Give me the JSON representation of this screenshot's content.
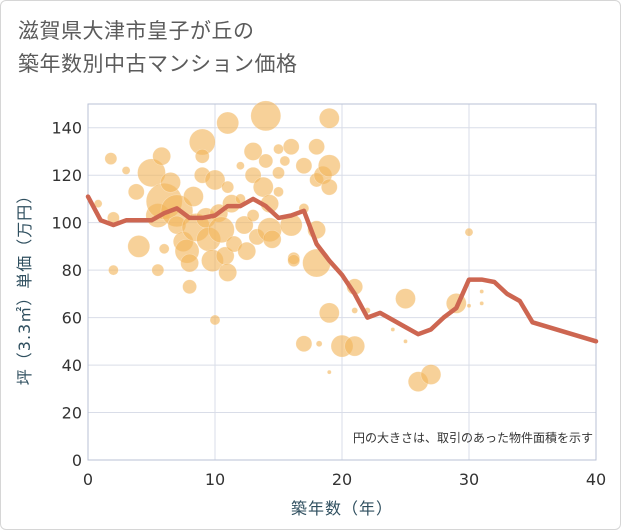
{
  "title": {
    "line1": "滋賀県大津市皇子が丘の",
    "line2": "築年数別中古マンション価格"
  },
  "colors": {
    "bubble": "#f2b45a",
    "line": "#cd6651",
    "grid": "#d9dde8",
    "plot_border": "#b9c1d6"
  },
  "chart_data": {
    "type": "scatter",
    "xlabel": "築年数（年）",
    "ylabel": "坪（3.3㎡）単価（万円）",
    "xlim": [
      0,
      40
    ],
    "ylim": [
      0,
      150
    ],
    "xticks": [
      0,
      10,
      20,
      30,
      40
    ],
    "yticks": [
      0,
      20,
      40,
      60,
      80,
      100,
      120,
      140
    ],
    "grid": true,
    "annotation": "円の大きさは、取引のあった物件面積を示す",
    "line": {
      "x": [
        0,
        1,
        2,
        3,
        4,
        5,
        6,
        7,
        8,
        9,
        10,
        11,
        12,
        13,
        14,
        15,
        16,
        17,
        18,
        19,
        20,
        21,
        22,
        23,
        24,
        25,
        26,
        27,
        28,
        29,
        30,
        31,
        32,
        33,
        34,
        35,
        40
      ],
      "y": [
        111,
        101,
        99,
        101,
        101,
        101,
        104,
        106,
        102,
        102,
        103,
        107,
        107,
        110,
        107,
        102,
        103,
        105,
        91,
        84,
        78,
        70,
        60,
        62,
        59,
        56,
        53,
        55,
        60,
        64,
        76,
        76,
        75,
        70,
        67,
        58,
        50
      ]
    },
    "points": [
      {
        "x": 0.8,
        "y": 108,
        "s": 4
      },
      {
        "x": 1.8,
        "y": 127,
        "s": 6
      },
      {
        "x": 2.0,
        "y": 102,
        "s": 6
      },
      {
        "x": 2.0,
        "y": 80,
        "s": 5
      },
      {
        "x": 3.0,
        "y": 122,
        "s": 4
      },
      {
        "x": 3.8,
        "y": 113,
        "s": 8
      },
      {
        "x": 4.0,
        "y": 90,
        "s": 11
      },
      {
        "x": 5.0,
        "y": 121,
        "s": 14
      },
      {
        "x": 5.5,
        "y": 103,
        "s": 12
      },
      {
        "x": 5.5,
        "y": 80,
        "s": 6
      },
      {
        "x": 5.8,
        "y": 128,
        "s": 9
      },
      {
        "x": 6.0,
        "y": 109,
        "s": 18
      },
      {
        "x": 6.0,
        "y": 89,
        "s": 5
      },
      {
        "x": 6.5,
        "y": 117,
        "s": 10
      },
      {
        "x": 7.0,
        "y": 105,
        "s": 16
      },
      {
        "x": 7.0,
        "y": 99,
        "s": 9
      },
      {
        "x": 7.5,
        "y": 92,
        "s": 10
      },
      {
        "x": 7.8,
        "y": 88,
        "s": 12
      },
      {
        "x": 8.0,
        "y": 83,
        "s": 9
      },
      {
        "x": 8.0,
        "y": 73,
        "s": 7
      },
      {
        "x": 8.3,
        "y": 111,
        "s": 10
      },
      {
        "x": 8.5,
        "y": 98,
        "s": 14
      },
      {
        "x": 9.0,
        "y": 134,
        "s": 13
      },
      {
        "x": 9.0,
        "y": 128,
        "s": 7
      },
      {
        "x": 9.0,
        "y": 120,
        "s": 8
      },
      {
        "x": 9.3,
        "y": 102,
        "s": 10
      },
      {
        "x": 9.5,
        "y": 93,
        "s": 12
      },
      {
        "x": 9.8,
        "y": 84,
        "s": 11
      },
      {
        "x": 10.0,
        "y": 118,
        "s": 10
      },
      {
        "x": 10.0,
        "y": 59,
        "s": 5
      },
      {
        "x": 10.3,
        "y": 104,
        "s": 9
      },
      {
        "x": 10.5,
        "y": 97,
        "s": 13
      },
      {
        "x": 10.8,
        "y": 86,
        "s": 9
      },
      {
        "x": 11.0,
        "y": 142,
        "s": 11
      },
      {
        "x": 11.0,
        "y": 115,
        "s": 6
      },
      {
        "x": 11.0,
        "y": 79,
        "s": 9
      },
      {
        "x": 11.3,
        "y": 108,
        "s": 9
      },
      {
        "x": 11.5,
        "y": 91,
        "s": 8
      },
      {
        "x": 12.0,
        "y": 124,
        "s": 4
      },
      {
        "x": 12.0,
        "y": 110,
        "s": 5
      },
      {
        "x": 12.3,
        "y": 99,
        "s": 9
      },
      {
        "x": 12.5,
        "y": 88,
        "s": 9
      },
      {
        "x": 13.0,
        "y": 130,
        "s": 9
      },
      {
        "x": 13.0,
        "y": 120,
        "s": 8
      },
      {
        "x": 13.0,
        "y": 103,
        "s": 6
      },
      {
        "x": 13.3,
        "y": 94,
        "s": 8
      },
      {
        "x": 13.8,
        "y": 115,
        "s": 10
      },
      {
        "x": 14.0,
        "y": 145,
        "s": 15
      },
      {
        "x": 14.0,
        "y": 126,
        "s": 7
      },
      {
        "x": 14.3,
        "y": 108,
        "s": 9
      },
      {
        "x": 14.3,
        "y": 97,
        "s": 12
      },
      {
        "x": 14.5,
        "y": 93,
        "s": 9
      },
      {
        "x": 15.0,
        "y": 131,
        "s": 5
      },
      {
        "x": 15.0,
        "y": 121,
        "s": 6
      },
      {
        "x": 15.0,
        "y": 113,
        "s": 5
      },
      {
        "x": 15.5,
        "y": 126,
        "s": 5
      },
      {
        "x": 16.0,
        "y": 132,
        "s": 8
      },
      {
        "x": 16.0,
        "y": 99,
        "s": 11
      },
      {
        "x": 16.2,
        "y": 85,
        "s": 6
      },
      {
        "x": 16.2,
        "y": 84,
        "s": 6
      },
      {
        "x": 17.0,
        "y": 124,
        "s": 8
      },
      {
        "x": 17.0,
        "y": 106,
        "s": 5
      },
      {
        "x": 17.0,
        "y": 49,
        "s": 8
      },
      {
        "x": 18.0,
        "y": 132,
        "s": 8
      },
      {
        "x": 18.0,
        "y": 118,
        "s": 7
      },
      {
        "x": 18.0,
        "y": 97,
        "s": 9
      },
      {
        "x": 18.0,
        "y": 83,
        "s": 14
      },
      {
        "x": 18.2,
        "y": 49,
        "s": 3
      },
      {
        "x": 18.5,
        "y": 120,
        "s": 9
      },
      {
        "x": 19.0,
        "y": 144,
        "s": 10
      },
      {
        "x": 19.0,
        "y": 124,
        "s": 11
      },
      {
        "x": 19.0,
        "y": 115,
        "s": 8
      },
      {
        "x": 19.0,
        "y": 62,
        "s": 10
      },
      {
        "x": 19.0,
        "y": 37,
        "s": 2
      },
      {
        "x": 20.0,
        "y": 48,
        "s": 11
      },
      {
        "x": 21.0,
        "y": 73,
        "s": 8
      },
      {
        "x": 21.0,
        "y": 63,
        "s": 3
      },
      {
        "x": 21.0,
        "y": 48,
        "s": 10
      },
      {
        "x": 22.0,
        "y": 63,
        "s": 3
      },
      {
        "x": 24.0,
        "y": 55,
        "s": 2
      },
      {
        "x": 25.0,
        "y": 68,
        "s": 10
      },
      {
        "x": 25.0,
        "y": 50,
        "s": 2
      },
      {
        "x": 26.0,
        "y": 33,
        "s": 10
      },
      {
        "x": 27.0,
        "y": 36,
        "s": 10
      },
      {
        "x": 29.0,
        "y": 66,
        "s": 10
      },
      {
        "x": 30.0,
        "y": 96,
        "s": 4
      },
      {
        "x": 30.0,
        "y": 65,
        "s": 2
      },
      {
        "x": 31.0,
        "y": 71,
        "s": 2
      },
      {
        "x": 31.0,
        "y": 66,
        "s": 2
      }
    ]
  }
}
